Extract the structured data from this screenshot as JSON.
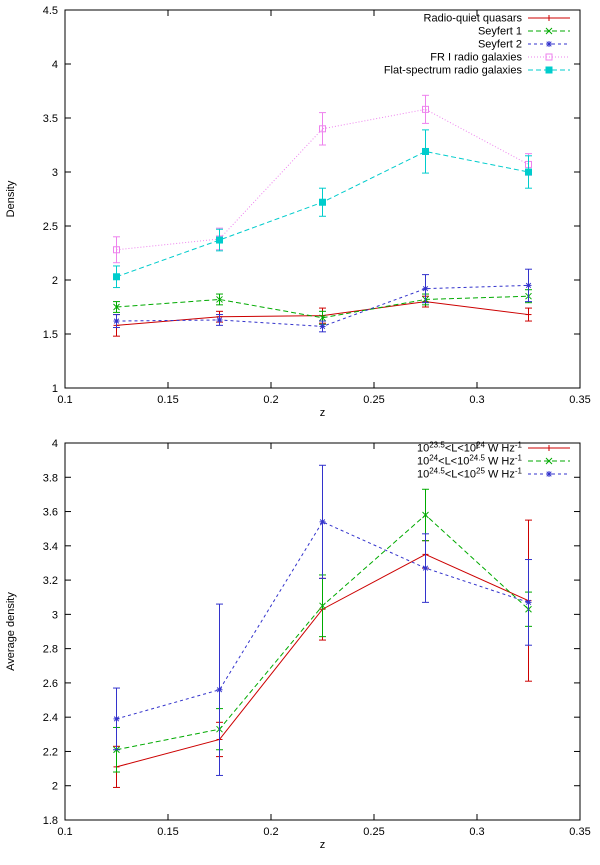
{
  "figure": {
    "background": "#ffffff",
    "axis_color": "#000000"
  },
  "chart_data": [
    {
      "type": "line",
      "title": "",
      "xlabel": "z",
      "ylabel": "Density",
      "xlim": [
        0.1,
        0.35
      ],
      "ylim": [
        1,
        4.5
      ],
      "x_ticks": [
        0.1,
        0.15,
        0.2,
        0.25,
        0.3,
        0.35
      ],
      "x_tick_labels": [
        "0.1",
        "0.15",
        "0.2",
        "0.25",
        "0.3",
        "0.35"
      ],
      "y_ticks": [
        1,
        1.5,
        2,
        2.5,
        3,
        3.5,
        4,
        4.5
      ],
      "y_tick_labels": [
        "1",
        "1.5",
        "2",
        "2.5",
        "3",
        "3.5",
        "4",
        "4.5"
      ],
      "grid": false,
      "legend_position": "top-right",
      "x": [
        0.125,
        0.175,
        0.225,
        0.275,
        0.325
      ],
      "series": [
        {
          "name": "Radio-quiet quasars",
          "color": "#cc0000",
          "dash": "",
          "marker": "plus",
          "values": [
            1.58,
            1.66,
            1.67,
            1.8,
            1.68
          ],
          "errors": [
            0.1,
            0.05,
            0.07,
            0.05,
            0.06
          ]
        },
        {
          "name": "Seyfert 1",
          "color": "#00aa00",
          "dash": "5,3",
          "marker": "cross",
          "values": [
            1.75,
            1.82,
            1.65,
            1.82,
            1.85
          ],
          "errors": [
            0.05,
            0.05,
            0.06,
            0.05,
            0.06
          ]
        },
        {
          "name": "Seyfert 2",
          "color": "#3333cc",
          "dash": "3,3",
          "marker": "asterisk",
          "values": [
            1.62,
            1.63,
            1.57,
            1.92,
            1.95
          ],
          "errors": [
            0.06,
            0.05,
            0.05,
            0.13,
            0.15
          ]
        },
        {
          "name": "FR I radio galaxies",
          "color": "#ee82ee",
          "dash": "1,2",
          "marker": "square-open",
          "values": [
            2.28,
            2.38,
            3.4,
            3.58,
            3.07
          ],
          "errors": [
            0.12,
            0.1,
            0.15,
            0.13,
            0.1
          ]
        },
        {
          "name": "Flat-spectrum radio galaxies",
          "color": "#00cccc",
          "dash": "5,3",
          "marker": "square-filled",
          "values": [
            2.03,
            2.37,
            2.72,
            3.19,
            3.0
          ],
          "errors": [
            0.1,
            0.1,
            0.13,
            0.2,
            0.15
          ]
        }
      ]
    },
    {
      "type": "line",
      "title": "",
      "xlabel": "z",
      "ylabel": "Average density",
      "xlim": [
        0.1,
        0.35
      ],
      "ylim": [
        1.8,
        4
      ],
      "x_ticks": [
        0.1,
        0.15,
        0.2,
        0.25,
        0.3,
        0.35
      ],
      "x_tick_labels": [
        "0.1",
        "0.15",
        "0.2",
        "0.25",
        "0.3",
        "0.35"
      ],
      "y_ticks": [
        1.8,
        2,
        2.2,
        2.4,
        2.6,
        2.8,
        3,
        3.2,
        3.4,
        3.6,
        3.8,
        4
      ],
      "y_tick_labels": [
        "1.8",
        "2",
        "2.2",
        "2.4",
        "2.6",
        "2.8",
        "3",
        "3.2",
        "3.4",
        "3.6",
        "3.8",
        "4"
      ],
      "grid": false,
      "legend_position": "top-right",
      "x": [
        0.125,
        0.175,
        0.225,
        0.275,
        0.325
      ],
      "series": [
        {
          "name": "10^{23.5}<L<10^{24} W Hz^{-1}",
          "color": "#cc0000",
          "dash": "",
          "marker": "plus",
          "values": [
            2.11,
            2.27,
            3.03,
            3.35,
            3.08
          ],
          "errors": [
            0.12,
            0.1,
            0.18,
            0.08,
            0.47
          ]
        },
        {
          "name": "10^{24}<L<10^{24.5} W Hz^{-1}",
          "color": "#00aa00",
          "dash": "5,3",
          "marker": "cross",
          "values": [
            2.21,
            2.33,
            3.05,
            3.58,
            3.03
          ],
          "errors": [
            0.13,
            0.12,
            0.18,
            0.15,
            0.1
          ]
        },
        {
          "name": "10^{24.5}<L<10^{25} W Hz^{-1}",
          "color": "#3333cc",
          "dash": "3,3",
          "marker": "asterisk",
          "values": [
            2.39,
            2.56,
            3.54,
            3.27,
            3.07
          ],
          "errors": [
            0.18,
            0.5,
            0.33,
            0.2,
            0.25
          ]
        }
      ]
    }
  ]
}
